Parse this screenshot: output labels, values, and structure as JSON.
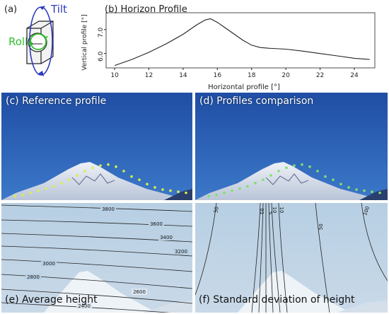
{
  "panel_a": {
    "label": "(a)",
    "tilt": "Tilt",
    "roll": "Roll"
  },
  "panel_b": {
    "label": "(b) Horizon Profile",
    "xlabel": "Horizontal profile [°]",
    "ylabel": "Vertical profile [°]",
    "xticks": [
      "10",
      "12",
      "14",
      "16",
      "18",
      "20",
      "22",
      "24"
    ],
    "yticks": [
      "6.0",
      "7.0"
    ]
  },
  "chart_data": {
    "type": "line",
    "title": "Horizon Profile",
    "xlabel": "Horizontal profile [°]",
    "ylabel": "Vertical profile [°]",
    "xlim": [
      9.5,
      25.2
    ],
    "ylim": [
      5.4,
      7.7
    ],
    "x": [
      10.0,
      11.0,
      12.0,
      13.0,
      14.0,
      14.8,
      15.3,
      15.6,
      16.0,
      16.5,
      17.0,
      17.5,
      18.0,
      18.5,
      19.0,
      20.0,
      21.0,
      22.0,
      23.0,
      24.0,
      24.9
    ],
    "y": [
      5.5,
      5.75,
      6.05,
      6.4,
      6.8,
      7.2,
      7.4,
      7.45,
      7.3,
      7.05,
      6.8,
      6.55,
      6.35,
      6.25,
      6.22,
      6.18,
      6.1,
      6.0,
      5.9,
      5.8,
      5.75
    ]
  },
  "panel_c": {
    "label": "(c) Reference profile",
    "points": [
      [
        0.1,
        0.95
      ],
      [
        0.2,
        0.94
      ],
      [
        0.3,
        0.92
      ],
      [
        0.4,
        0.9
      ],
      [
        0.5,
        0.88
      ],
      [
        0.6,
        0.86
      ],
      [
        0.7,
        0.83
      ],
      [
        0.8,
        0.8
      ],
      [
        0.9,
        0.76
      ],
      [
        1.0,
        0.72
      ],
      [
        1.1,
        0.69
      ],
      [
        1.2,
        0.67
      ],
      [
        1.3,
        0.66
      ],
      [
        1.4,
        0.68
      ],
      [
        1.5,
        0.72
      ],
      [
        1.6,
        0.77
      ],
      [
        1.7,
        0.8
      ],
      [
        1.8,
        0.84
      ],
      [
        1.9,
        0.87
      ],
      [
        2.0,
        0.89
      ],
      [
        2.1,
        0.9
      ],
      [
        2.2,
        0.91
      ],
      [
        2.3,
        0.92
      ]
    ]
  },
  "panel_d": {
    "label": "(d) Profiles comparison"
  },
  "panel_e": {
    "label": "(e) Average height",
    "contour_labels": [
      "3800",
      "3600",
      "3400",
      "3200",
      "3000",
      "2800",
      "2600",
      "2400"
    ]
  },
  "panel_f": {
    "label": "(f) Standard deviation of height",
    "contour_labels": [
      "50",
      "10",
      "5",
      "10",
      "50",
      "100",
      "01"
    ]
  },
  "colors": {
    "sky_top": "#1e4fa6",
    "sky_bottom": "#3a73c8",
    "haze": "#b7cfe3",
    "mountain": "#e6eaf2",
    "profile_point": "#d8f04a",
    "tilt": "#2c3bbd",
    "roll": "#2fbf2f"
  }
}
